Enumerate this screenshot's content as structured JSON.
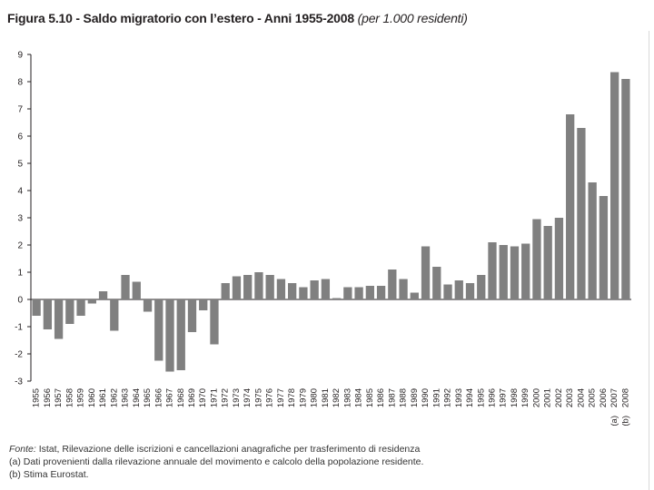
{
  "title": {
    "main": "Figura 5.10 - Saldo migratorio con l’estero - Anni 1955-2008",
    "unit": "(per 1.000 residenti)"
  },
  "chart_data": {
    "type": "bar",
    "title": "Saldo migratorio con l’estero - Anni 1955-2008",
    "subtitle": "(per 1.000 residenti)",
    "xlabel": "",
    "ylabel": "",
    "ylim": [
      -3,
      9
    ],
    "yticks": [
      -3,
      -2,
      -1,
      0,
      1,
      2,
      3,
      4,
      5,
      6,
      7,
      8,
      9
    ],
    "grid": false,
    "bar_color": "#808080",
    "categories": [
      "1955",
      "1956",
      "1957",
      "1958",
      "1959",
      "1960",
      "1961",
      "1962",
      "1963",
      "1964",
      "1965",
      "1966",
      "1967",
      "1968",
      "1969",
      "1970",
      "1971",
      "1972",
      "1973",
      "1974",
      "1975",
      "1976",
      "1977",
      "1978",
      "1979",
      "1980",
      "1981",
      "1982",
      "1983",
      "1984",
      "1985",
      "1986",
      "1987",
      "1988",
      "1989",
      "1990",
      "1991",
      "1992",
      "1993",
      "1994",
      "1995",
      "1996",
      "1997",
      "1998",
      "1999",
      "2000",
      "2001",
      "2002",
      "2003",
      "2004",
      "2005",
      "2006",
      "2007",
      "2008"
    ],
    "values": [
      -0.6,
      -1.1,
      -1.45,
      -0.9,
      -0.6,
      -0.15,
      0.3,
      -1.15,
      0.9,
      0.65,
      -0.45,
      -2.25,
      -2.65,
      -2.6,
      -1.2,
      -0.4,
      -1.65,
      0.6,
      0.85,
      0.9,
      1.0,
      0.9,
      0.75,
      0.6,
      0.45,
      0.7,
      0.75,
      0.05,
      0.45,
      0.45,
      0.5,
      0.5,
      1.1,
      0.75,
      0.25,
      1.95,
      1.2,
      0.55,
      0.7,
      0.6,
      0.9,
      2.1,
      2.0,
      1.95,
      2.05,
      2.95,
      2.7,
      3.0,
      6.8,
      6.3,
      4.3,
      3.8,
      8.35,
      8.1
    ],
    "annotations": [
      {
        "category": "2007",
        "text": "(a)"
      },
      {
        "category": "2008",
        "text": "(b)"
      }
    ]
  },
  "footnotes": {
    "source_label": "Fonte:",
    "source_text": "Istat, Rilevazione delle iscrizioni e cancellazioni anagrafiche per trasferimento di residenza",
    "note_a": "(a) Dati provenienti dalla rilevazione annuale del movimento e calcolo della popolazione residente.",
    "note_b": "(b) Stima Eurostat."
  }
}
